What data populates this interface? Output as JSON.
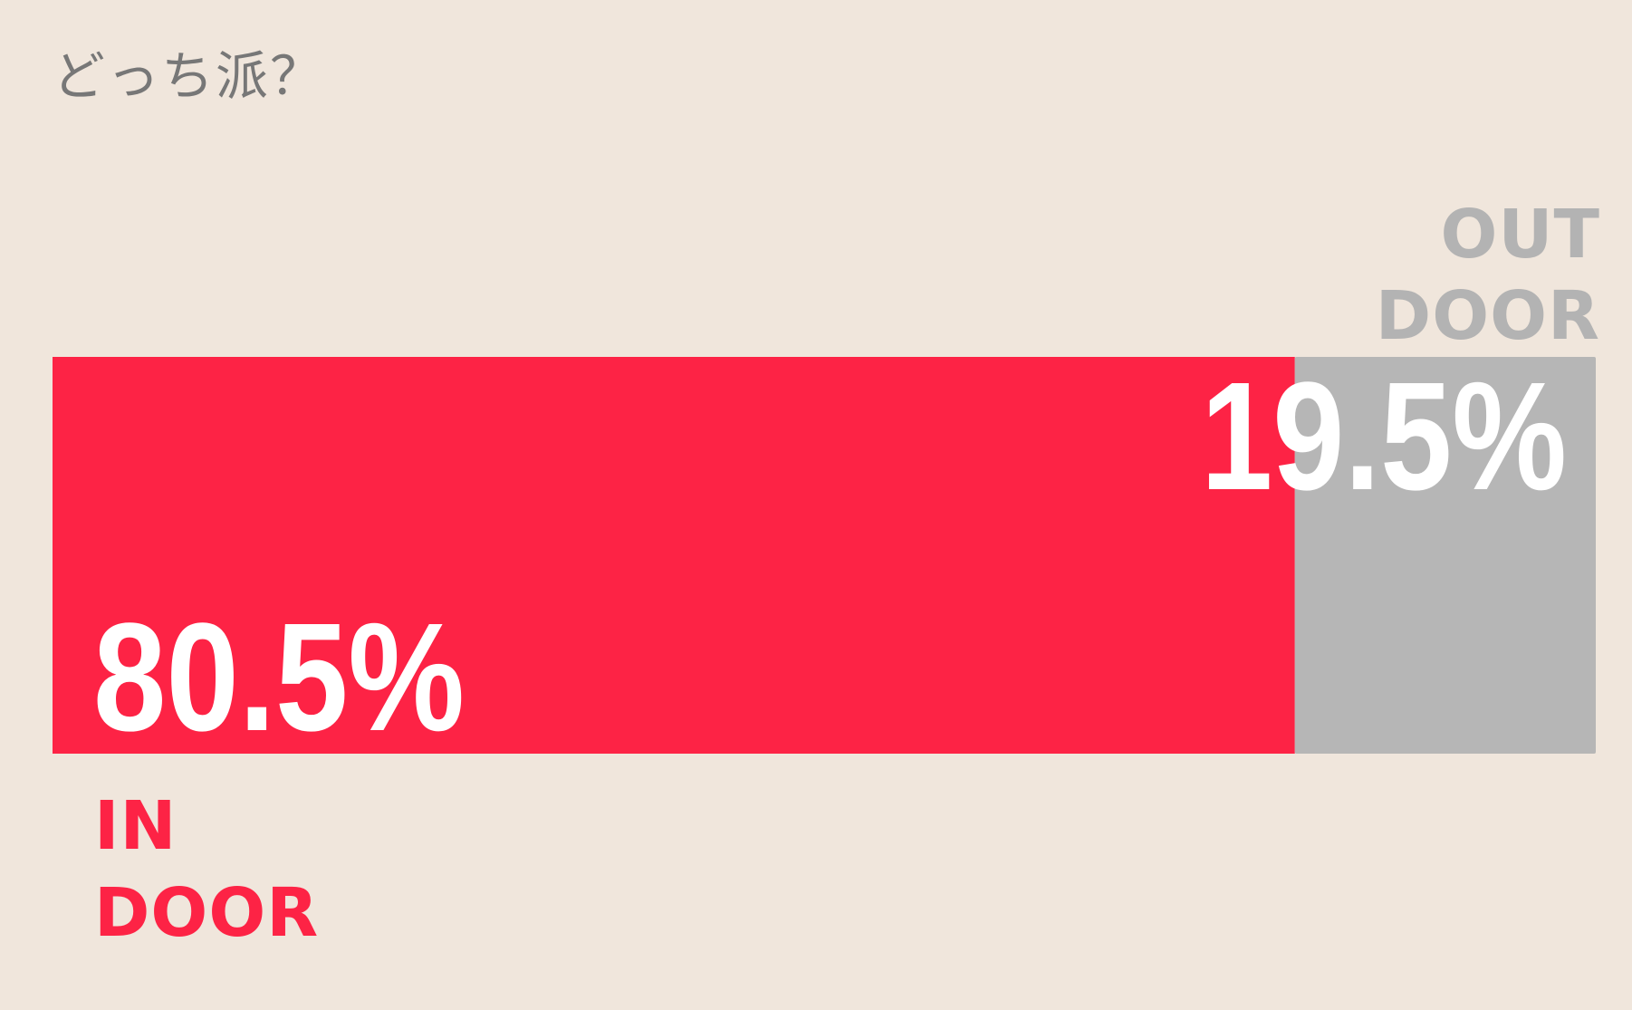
{
  "title": "どっち派？",
  "chart_data": {
    "type": "bar",
    "orientation": "horizontal-stacked",
    "title": "どっち派？",
    "series": [
      {
        "label_lines": [
          "IN",
          "DOOR"
        ],
        "value": 80.5,
        "value_label": "80.5%",
        "color": "#fd2345"
      },
      {
        "label_lines": [
          "OUT",
          "DOOR"
        ],
        "value": 19.5,
        "value_label": "19.5%",
        "color": "#b6b6b6"
      }
    ],
    "total": 100,
    "grid": false,
    "legend": "none"
  },
  "colors": {
    "background": "#f0e6dc",
    "title_text": "#777777",
    "indoor": "#fd2345",
    "outdoor": "#b6b6b6",
    "value_text": "#ffffff"
  }
}
